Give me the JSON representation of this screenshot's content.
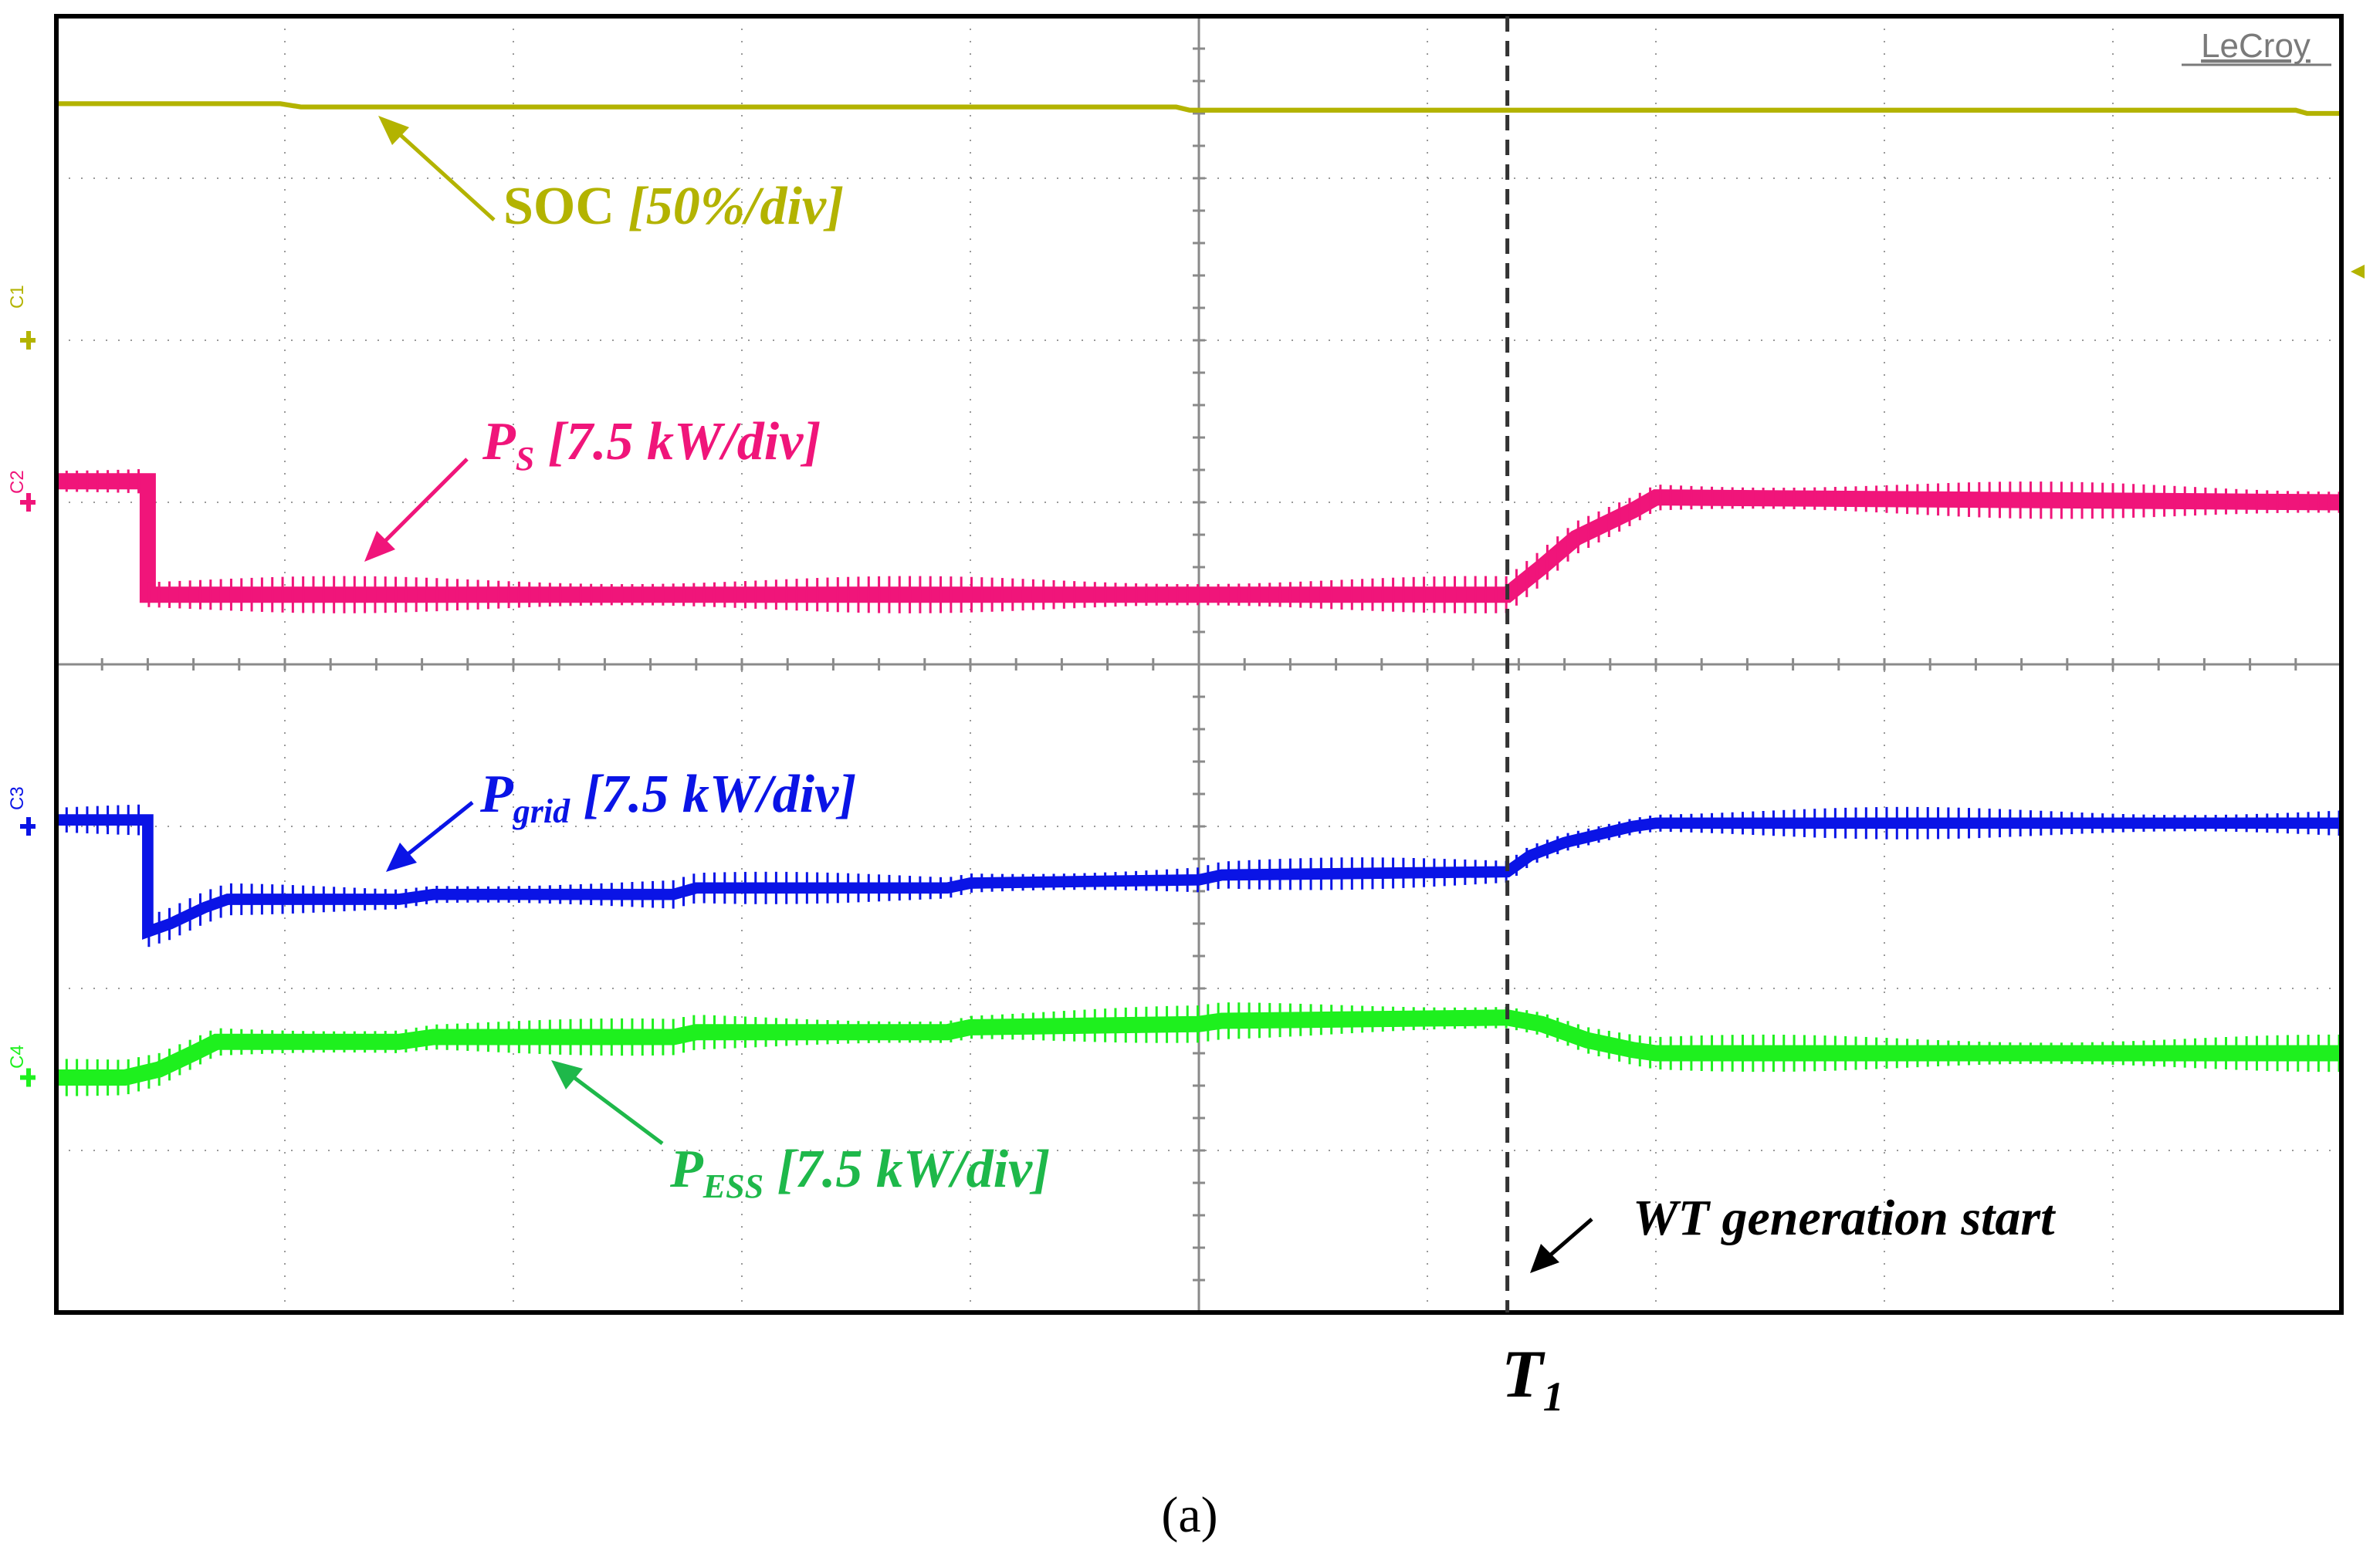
{
  "chart_data": {
    "type": "line",
    "title": "",
    "brand": "LeCroy",
    "caption": "(a)",
    "x_divisions": 10,
    "y_divisions": 8,
    "xlim": [
      0,
      10
    ],
    "ylim": [
      -4,
      4
    ],
    "xlabel": "",
    "ylabel": "",
    "grid": true,
    "series": [
      {
        "name": "SOC",
        "channel": "C1",
        "scale_label": "SOC [50%/div]",
        "color": "#b3b300",
        "ground_level": 2.0,
        "thickness": 0.03,
        "points": [
          [
            0,
            3.46
          ],
          [
            0.98,
            3.46
          ],
          [
            1.07,
            3.44
          ],
          [
            4.9,
            3.44
          ],
          [
            4.96,
            3.42
          ],
          [
            9.8,
            3.42
          ],
          [
            9.85,
            3.4
          ],
          [
            10,
            3.4
          ]
        ]
      },
      {
        "name": "P_S",
        "channel": "C2",
        "scale_label": "7.5 kW/div",
        "color": "#f0157a",
        "ground_level": 1.0,
        "thickness": 0.1,
        "points": [
          [
            0,
            1.13
          ],
          [
            0.4,
            1.13
          ],
          [
            0.4,
            0.43
          ],
          [
            6.35,
            0.43
          ],
          [
            6.5,
            0.6
          ],
          [
            6.65,
            0.78
          ],
          [
            6.9,
            0.95
          ],
          [
            7.0,
            1.03
          ],
          [
            10,
            1.0
          ]
        ]
      },
      {
        "name": "P_grid",
        "channel": "C3",
        "scale_label": "7.5 kW/div",
        "color": "#0a14e6",
        "ground_level": -1.0,
        "thickness": 0.07,
        "points": [
          [
            0,
            -0.96
          ],
          [
            0.4,
            -0.96
          ],
          [
            0.4,
            -1.65
          ],
          [
            0.5,
            -1.6
          ],
          [
            0.65,
            -1.5
          ],
          [
            0.75,
            -1.45
          ],
          [
            1.5,
            -1.45
          ],
          [
            1.65,
            -1.42
          ],
          [
            2.7,
            -1.42
          ],
          [
            2.8,
            -1.38
          ],
          [
            3.9,
            -1.38
          ],
          [
            4.0,
            -1.35
          ],
          [
            5.0,
            -1.33
          ],
          [
            5.1,
            -1.3
          ],
          [
            6.35,
            -1.28
          ],
          [
            6.45,
            -1.18
          ],
          [
            6.6,
            -1.1
          ],
          [
            6.9,
            -1.0
          ],
          [
            7.0,
            -0.98
          ],
          [
            10,
            -0.98
          ]
        ]
      },
      {
        "name": "P_ESS",
        "channel": "C4",
        "scale_label": "7.5 kW/div",
        "color": "#1ef01e",
        "ground_level": -2.55,
        "thickness": 0.1,
        "points": [
          [
            0,
            -2.55
          ],
          [
            0.3,
            -2.55
          ],
          [
            0.45,
            -2.5
          ],
          [
            0.6,
            -2.4
          ],
          [
            0.7,
            -2.33
          ],
          [
            1.5,
            -2.33
          ],
          [
            1.65,
            -2.3
          ],
          [
            2.7,
            -2.3
          ],
          [
            2.8,
            -2.27
          ],
          [
            3.9,
            -2.27
          ],
          [
            4.0,
            -2.24
          ],
          [
            5.0,
            -2.22
          ],
          [
            5.1,
            -2.2
          ],
          [
            6.35,
            -2.18
          ],
          [
            6.5,
            -2.22
          ],
          [
            6.7,
            -2.32
          ],
          [
            6.9,
            -2.38
          ],
          [
            7.0,
            -2.4
          ],
          [
            10,
            -2.4
          ]
        ]
      }
    ],
    "annotations": {
      "soc": {
        "main": "SOC ",
        "scale": "[50%/div]"
      },
      "ps": {
        "main": "P",
        "sub": "S",
        "scale": " [7.5 kW/div]"
      },
      "pgrid": {
        "main": "P",
        "sub": "grid",
        "scale": " [7.5 kW/div]"
      },
      "pess": {
        "main": "P",
        "sub": "ESS",
        "scale": " [7.5 kW/div]"
      },
      "event": {
        "text": "WT generation start",
        "x": 6.35,
        "marker_main": "T",
        "marker_sub": "1"
      }
    },
    "channel_labels": [
      "C1",
      "C2",
      "C3",
      "C4"
    ]
  }
}
